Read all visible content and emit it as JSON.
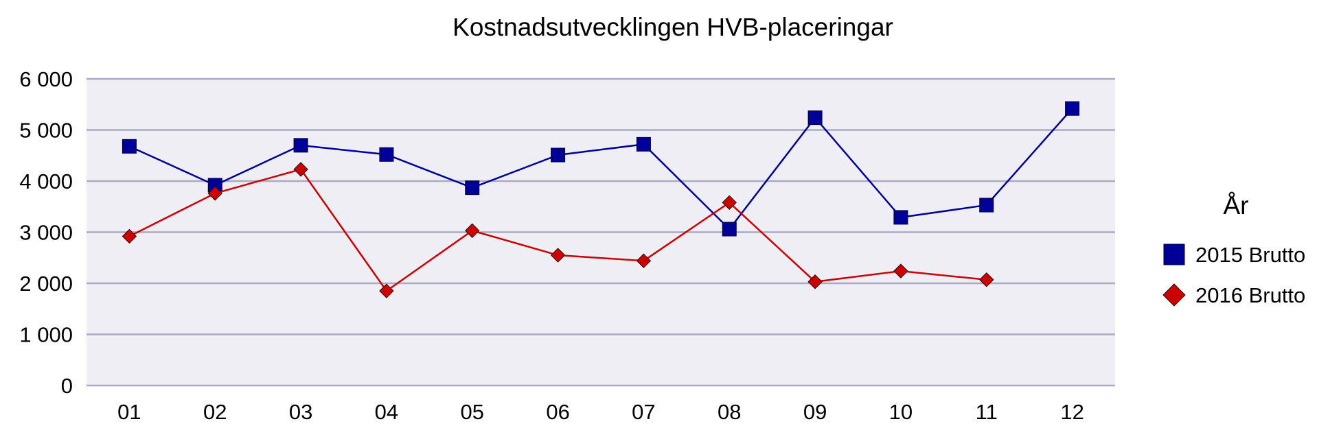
{
  "chart_data": {
    "type": "line",
    "title": "Kostnadsutvecklingen HVB-placeringar",
    "xlabel": "",
    "ylabel": "",
    "categories": [
      "01",
      "02",
      "03",
      "04",
      "05",
      "06",
      "07",
      "08",
      "09",
      "10",
      "11",
      "12"
    ],
    "ylim": [
      0,
      6000
    ],
    "yticks": [
      0,
      1000,
      2000,
      3000,
      4000,
      5000,
      6000
    ],
    "ytick_labels": [
      "0",
      "1 000",
      "2 000",
      "3 000",
      "4 000",
      "5 000",
      "6 000"
    ],
    "grid": true,
    "legend": {
      "title": "År",
      "position": "right"
    },
    "series": [
      {
        "name": "2015 Brutto",
        "marker": "square",
        "color": "#000099",
        "values": [
          4680,
          3920,
          4700,
          4520,
          3870,
          4510,
          4720,
          3060,
          5240,
          3290,
          3530,
          5420
        ]
      },
      {
        "name": "2016 Brutto",
        "marker": "diamond",
        "color": "#cc0000",
        "values": [
          2920,
          3760,
          4230,
          1850,
          3030,
          2550,
          2440,
          3580,
          2030,
          2240,
          2070,
          null
        ]
      }
    ]
  }
}
